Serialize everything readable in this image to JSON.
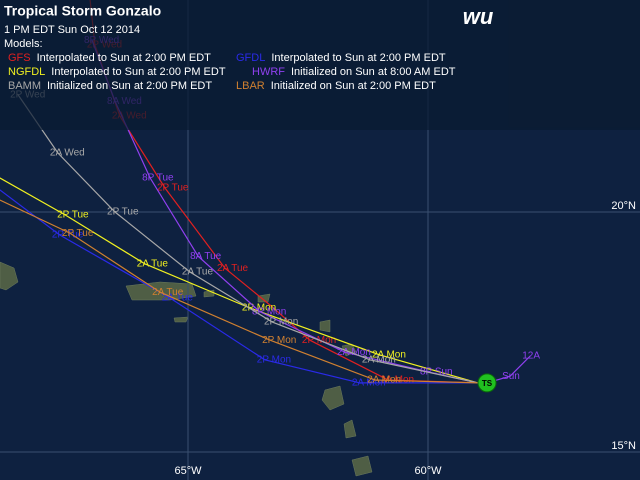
{
  "title": "Tropical Storm Gonzalo",
  "timestamp": "1 PM EDT Sun Oct 12 2014",
  "models_label": "Models:",
  "logo": "wu",
  "grid": {
    "lat": [
      {
        "value": 20,
        "label": "20°N"
      },
      {
        "value": 15,
        "label": "15°N"
      }
    ],
    "lon": [
      {
        "value": -65,
        "label": "65°W"
      },
      {
        "value": -60,
        "label": "60°W"
      }
    ]
  },
  "storm": {
    "label": "TS",
    "lon": -58.77,
    "lat": 16.44
  },
  "past_track": {
    "color": "#9040f0",
    "points": [
      {
        "lon": -58.77,
        "lat": 16.44
      },
      {
        "lon": -58.29,
        "lat": 16.58,
        "label": "Sun"
      },
      {
        "lon": -57.87,
        "lat": 17.0,
        "label": "12A"
      }
    ]
  },
  "models": [
    {
      "name": "GFS",
      "description": "Interpolated to Sun at 2:00 PM EDT",
      "color": "#e02020",
      "track": [
        {
          "lon": -58.96,
          "lat": 16.44
        },
        {
          "lon": -60.83,
          "lat": 16.5,
          "label": "2A Mon"
        },
        {
          "lon": -62.46,
          "lat": 17.33,
          "label": "2P Mon"
        },
        {
          "lon": -63.29,
          "lat": 18.06
        },
        {
          "lon": -64.23,
          "lat": 18.83,
          "label": "2A Tue"
        },
        {
          "lon": -65.48,
          "lat": 20.5,
          "label": "2P Tue"
        },
        {
          "lon": -66.42,
          "lat": 22.0,
          "label": "2A Wed"
        },
        {
          "lon": -66.94,
          "lat": 23.48,
          "label": "2P Wed"
        },
        {
          "lon": -67.04,
          "lat": 24.42
        }
      ]
    },
    {
      "name": "GFDL",
      "description": "Interpolated to Sun at 2:00 PM EDT",
      "color": "#2a2ae8",
      "track": [
        {
          "lon": -58.96,
          "lat": 16.44
        },
        {
          "lon": -61.42,
          "lat": 16.44,
          "label": "2A Mon"
        },
        {
          "lon": -63.4,
          "lat": 16.92,
          "label": "2P Mon"
        },
        {
          "lon": -65.38,
          "lat": 18.21,
          "label": "2A Tue"
        },
        {
          "lon": -67.67,
          "lat": 19.52,
          "label": "2P Tue"
        },
        {
          "lon": -68.92,
          "lat": 20.46
        }
      ]
    },
    {
      "name": "NGFDL",
      "description": "Interpolated to Sun at 2:00 PM EDT",
      "color": "#f0f020",
      "track": [
        {
          "lon": -58.96,
          "lat": 16.44
        },
        {
          "lon": -61.0,
          "lat": 17.02,
          "label": "2A Mon"
        },
        {
          "lon": -63.71,
          "lat": 18.0,
          "label": "2P Mon"
        },
        {
          "lon": -65.9,
          "lat": 18.92,
          "label": "2A Tue"
        },
        {
          "lon": -67.56,
          "lat": 19.94,
          "label": "2P Tue"
        },
        {
          "lon": -68.92,
          "lat": 20.71
        }
      ]
    },
    {
      "name": "HWRF",
      "description": "Initialized on Sun at 8:00 AM EDT",
      "color": "#9040f0",
      "track": [
        {
          "lon": -58.96,
          "lat": 16.44
        },
        {
          "lon": -60.0,
          "lat": 16.67,
          "label": "8P Sun"
        },
        {
          "lon": -61.73,
          "lat": 17.08,
          "label": "2A Mon"
        },
        {
          "lon": -63.5,
          "lat": 17.92,
          "label": "8P Mon"
        },
        {
          "lon": -64.79,
          "lat": 19.08,
          "label": "8A Tue"
        },
        {
          "lon": -65.79,
          "lat": 20.71,
          "label": "8P Tue"
        },
        {
          "lon": -66.52,
          "lat": 22.31,
          "label": "8A Wed"
        },
        {
          "lon": -67.0,
          "lat": 23.58,
          "label": "8P Wed"
        }
      ]
    },
    {
      "name": "BAMM",
      "description": "Initialized on Sun at 2:00 PM EDT",
      "color": "#a8a8a8",
      "track": [
        {
          "lon": -58.96,
          "lat": 16.44
        },
        {
          "lon": -61.21,
          "lat": 16.92,
          "label": "2A Mon"
        },
        {
          "lon": -63.25,
          "lat": 17.71,
          "label": "2P Mon"
        },
        {
          "lon": -64.96,
          "lat": 18.75,
          "label": "2A Tue"
        },
        {
          "lon": -66.52,
          "lat": 20.0,
          "label": "2P Tue"
        },
        {
          "lon": -67.71,
          "lat": 21.23,
          "label": "2A Wed"
        },
        {
          "lon": -68.54,
          "lat": 22.44,
          "label": "2P Wed"
        }
      ]
    },
    {
      "name": "LBAR",
      "description": "Initialized on Sun at 2:00 PM EDT",
      "color": "#d08030",
      "track": [
        {
          "lon": -58.96,
          "lat": 16.44
        },
        {
          "lon": -61.1,
          "lat": 16.5,
          "label": "2A Mon"
        },
        {
          "lon": -63.29,
          "lat": 17.33,
          "label": "2P Mon"
        },
        {
          "lon": -65.58,
          "lat": 18.33,
          "label": "2A Tue"
        },
        {
          "lon": -67.46,
          "lat": 19.56,
          "label": "2P Tue"
        },
        {
          "lon": -68.92,
          "lat": 20.25
        }
      ]
    }
  ]
}
